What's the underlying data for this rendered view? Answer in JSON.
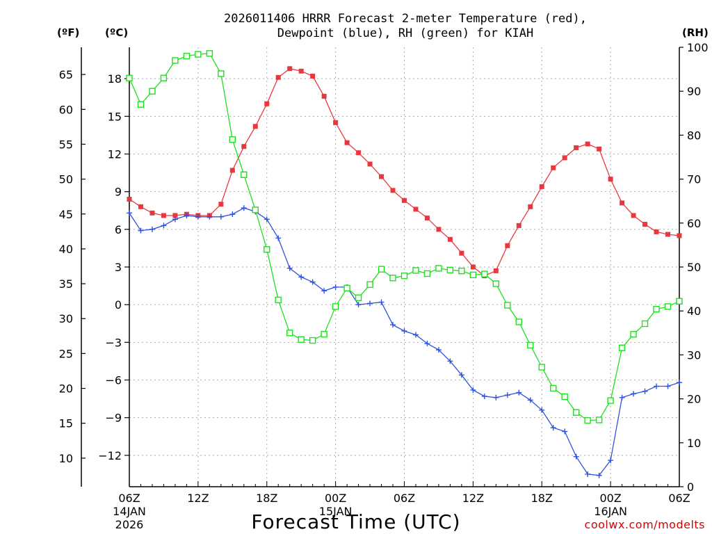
{
  "chart_data": {
    "type": "line",
    "title_line1": "2026011406 HRRR Forecast 2-meter Temperature (red),",
    "title_line2": "Dewpoint (blue), RH (green) for KIAH",
    "left_outer_unit": "(ºF)",
    "left_inner_unit": "(ºC)",
    "right_unit": "(RH)",
    "xlabel": "Forecast Time (UTC)",
    "watermark": "coolwx.com/modelts",
    "x_range_hours": [
      0,
      48
    ],
    "ylim_c": [
      -14.5,
      20.5
    ],
    "ylim_f": [
      5.9,
      68.9
    ],
    "ylim_rh": [
      0,
      100
    ],
    "grid": true,
    "c_ticks": [
      "18",
      "15",
      "12",
      "9",
      "6",
      "3",
      "0",
      "−3",
      "−6",
      "−9",
      "−12"
    ],
    "c_tick_values": [
      18,
      15,
      12,
      9,
      6,
      3,
      0,
      -3,
      -6,
      -9,
      -12
    ],
    "f_ticks": [
      "65",
      "60",
      "55",
      "50",
      "45",
      "40",
      "35",
      "30",
      "25",
      "20",
      "15",
      "10"
    ],
    "f_tick_values": [
      65,
      60,
      55,
      50,
      45,
      40,
      35,
      30,
      25,
      20,
      15,
      10
    ],
    "rh_ticks": [
      "100",
      "90",
      "80",
      "70",
      "60",
      "50",
      "40",
      "30",
      "20",
      "10",
      "0"
    ],
    "rh_tick_values": [
      100,
      90,
      80,
      70,
      60,
      50,
      40,
      30,
      20,
      10,
      0
    ],
    "x_ticks": [
      {
        "hour": 0,
        "label": "06Z",
        "date": "14JAN",
        "year": "2026"
      },
      {
        "hour": 6,
        "label": "12Z",
        "date": "",
        "year": ""
      },
      {
        "hour": 12,
        "label": "18Z",
        "date": "",
        "year": ""
      },
      {
        "hour": 18,
        "label": "00Z",
        "date": "15JAN",
        "year": ""
      },
      {
        "hour": 24,
        "label": "06Z",
        "date": "",
        "year": ""
      },
      {
        "hour": 30,
        "label": "12Z",
        "date": "",
        "year": ""
      },
      {
        "hour": 36,
        "label": "18Z",
        "date": "",
        "year": ""
      },
      {
        "hour": 42,
        "label": "00Z",
        "date": "16JAN",
        "year": ""
      },
      {
        "hour": 48,
        "label": "06Z",
        "date": "",
        "year": ""
      }
    ],
    "series": [
      {
        "name": "Temperature",
        "units": "C",
        "color": "#e8383f",
        "marker": "filled-square",
        "values": [
          8.4,
          7.8,
          7.3,
          7.1,
          7.1,
          7.2,
          7.1,
          7.1,
          8.0,
          10.7,
          12.6,
          14.2,
          16.0,
          18.1,
          18.8,
          18.6,
          18.2,
          16.6,
          14.5,
          12.9,
          12.1,
          11.2,
          10.2,
          9.1,
          8.3,
          7.6,
          6.9,
          6.0,
          5.2,
          4.1,
          3.0,
          2.3,
          2.7,
          4.7,
          6.3,
          7.8,
          9.4,
          10.9,
          11.7,
          12.5,
          12.8,
          12.4,
          10.0,
          8.1,
          7.1,
          6.4,
          5.8,
          5.6,
          5.5
        ]
      },
      {
        "name": "Dewpoint",
        "units": "C",
        "color": "#2f52e0",
        "marker": "plus",
        "values": [
          7.3,
          5.9,
          6.0,
          6.3,
          6.8,
          7.1,
          7.0,
          7.0,
          7.0,
          7.2,
          7.7,
          7.4,
          6.8,
          5.3,
          2.9,
          2.2,
          1.8,
          1.1,
          1.4,
          1.4,
          0.0,
          0.1,
          0.2,
          -1.6,
          -2.1,
          -2.4,
          -3.1,
          -3.6,
          -4.5,
          -5.6,
          -6.8,
          -7.3,
          -7.4,
          -7.2,
          -7.0,
          -7.6,
          -8.4,
          -9.8,
          -10.1,
          -12.1,
          -13.5,
          -13.6,
          -12.4,
          -7.4,
          -7.1,
          -6.9,
          -6.5,
          -6.5,
          -6.2
        ]
      },
      {
        "name": "RH",
        "units": "%",
        "color": "#1ee01e",
        "marker": "open-square",
        "values": [
          93,
          87,
          90,
          93,
          97,
          98,
          98.4,
          98.6,
          94,
          79,
          71,
          63,
          54,
          42.5,
          35,
          33.5,
          33.3,
          34.7,
          41,
          45.2,
          43,
          46,
          49.5,
          47.5,
          48,
          49.2,
          48.5,
          49.7,
          49.3,
          49.1,
          48.2,
          48.4,
          46.2,
          41.3,
          37.5,
          32.2,
          27.2,
          22.4,
          20.5,
          16.9,
          15.1,
          15.2,
          19.6,
          31.6,
          34.7,
          37.1,
          40.4,
          41.0,
          42.2
        ]
      }
    ]
  }
}
